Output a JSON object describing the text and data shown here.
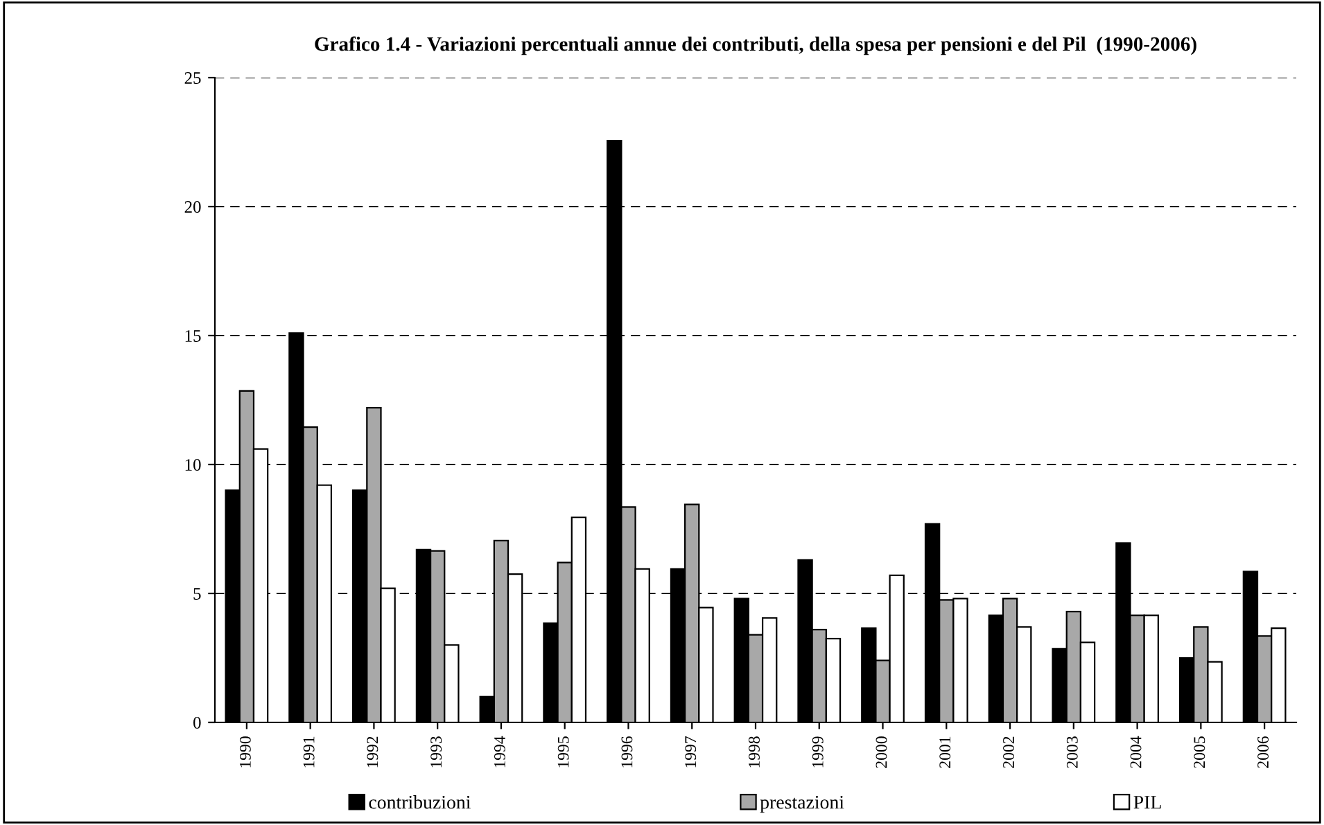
{
  "chart_data": {
    "type": "bar",
    "title": "Grafico 1.4 - Variazioni percentuali annue dei contributi, della spesa per pensioni e del Pil  (1990-2006)",
    "categories": [
      "1990",
      "1991",
      "1992",
      "1993",
      "1994",
      "1995",
      "1996",
      "1997",
      "1998",
      "1999",
      "2000",
      "2001",
      "2002",
      "2003",
      "2004",
      "2005",
      "2006"
    ],
    "series": [
      {
        "name": "contribuzioni",
        "color": "#000000",
        "values": [
          9.0,
          15.1,
          9.0,
          6.7,
          1.0,
          3.85,
          22.55,
          5.95,
          4.8,
          6.3,
          3.65,
          7.7,
          4.15,
          2.85,
          6.95,
          2.5,
          5.85
        ]
      },
      {
        "name": "prestazioni",
        "color": "#a8a8a8",
        "values": [
          12.85,
          11.45,
          12.2,
          6.65,
          7.05,
          6.2,
          8.35,
          8.45,
          3.4,
          3.6,
          2.4,
          4.75,
          4.8,
          4.3,
          4.15,
          3.7,
          3.35
        ]
      },
      {
        "name": "PIL",
        "color": "#ffffff",
        "values": [
          10.6,
          9.2,
          5.2,
          3.0,
          5.75,
          7.95,
          5.95,
          4.45,
          4.05,
          3.25,
          5.7,
          4.8,
          3.7,
          3.1,
          4.15,
          2.35,
          3.65
        ]
      }
    ],
    "ylim": [
      0,
      25
    ],
    "yticks": [
      0,
      5,
      10,
      15,
      20,
      25
    ],
    "grid": "y",
    "line_style": "dashed",
    "legend": "bottom"
  }
}
